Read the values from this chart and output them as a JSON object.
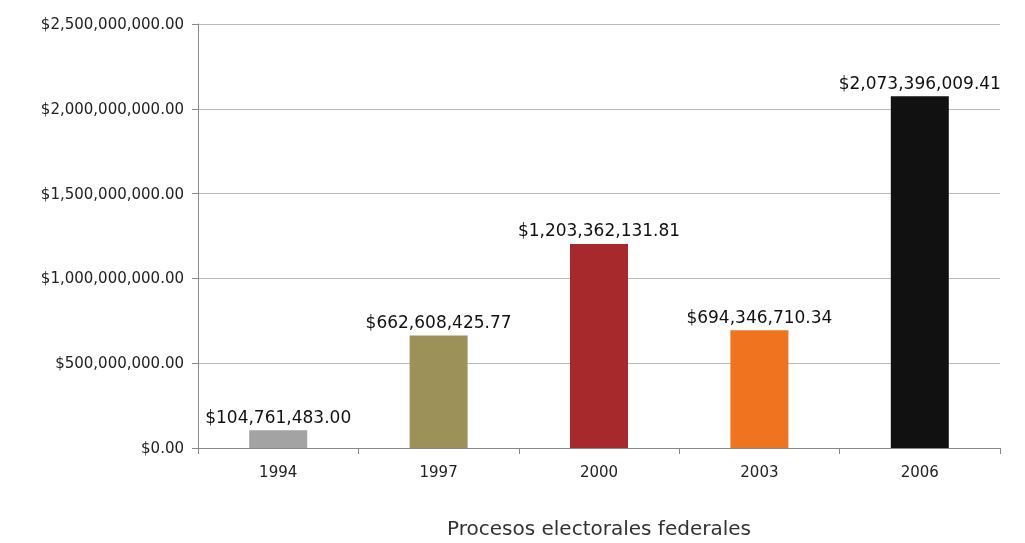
{
  "chart_data": {
    "type": "bar",
    "xlabel": "Procesos electorales federales",
    "categories": [
      "1994",
      "1997",
      "2000",
      "2003",
      "2006"
    ],
    "values": [
      104761483.0,
      662608425.77,
      1203362131.81,
      694346710.34,
      2073396009.41
    ],
    "colors": [
      "#a3a3a3",
      "#9c9158",
      "#a8292b",
      "#f0741f",
      "#111111"
    ],
    "value_labels": [
      "$104,761,483.00",
      "$662,608,425.77",
      "$1,203,362,131.81",
      "$694,346,710.34",
      "$2,073,396,009.41"
    ],
    "ylim": [
      0,
      2500000000
    ],
    "yticks": [
      {
        "value": 0,
        "label": "$0.00"
      },
      {
        "value": 500000000,
        "label": "$500,000,000.00"
      },
      {
        "value": 1000000000,
        "label": "$1,000,000,000.00"
      },
      {
        "value": 1500000000,
        "label": "$1,500,000,000.00"
      },
      {
        "value": 2000000000,
        "label": "$2,000,000,000.00"
      },
      {
        "value": 2500000000,
        "label": "$2,500,000,000.00"
      }
    ],
    "grid": "y"
  }
}
